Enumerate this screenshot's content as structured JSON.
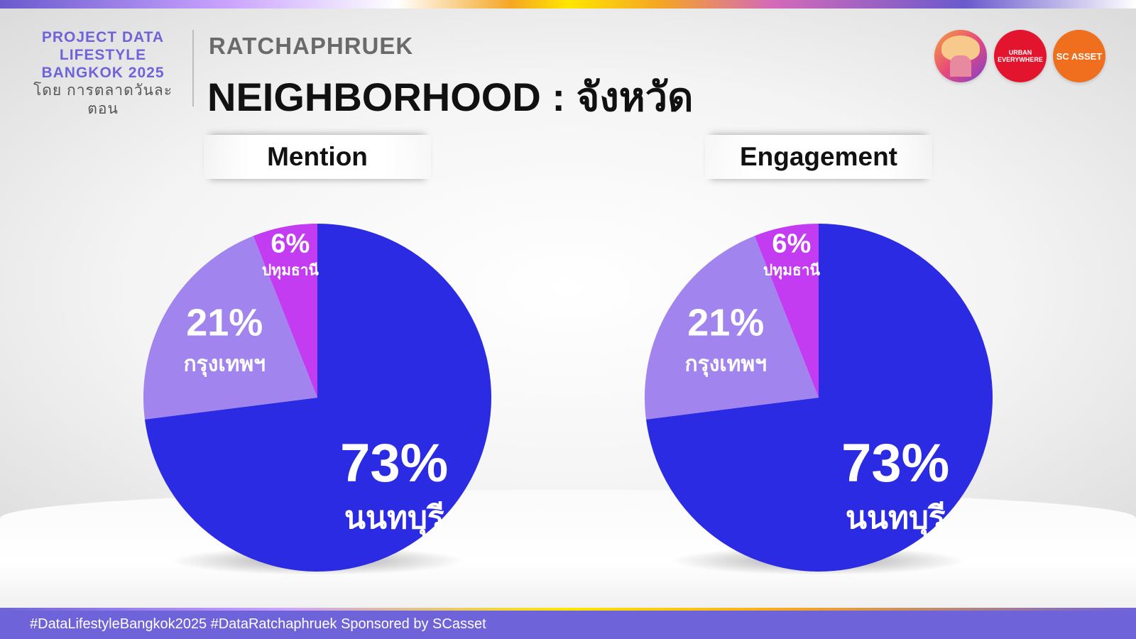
{
  "brand": {
    "lines": [
      "PROJECT DATA",
      "LIFESTYLE",
      "BANGKOK 2025"
    ],
    "subtitle": "โดย การตลาดวันละตอน"
  },
  "header": {
    "eyebrow": "RATCHAPHRUEK",
    "title": "NEIGHBORHOOD : จังหวัด"
  },
  "logos": {
    "urban": "URBAN EVERYWHERE",
    "scasset": "SC ASSET"
  },
  "colors": {
    "nonthaburi": "#2b2be4",
    "bangkok": "#a184ee",
    "pathumthani": "#c43cf2",
    "accent": "#6f63d9"
  },
  "chart_data": [
    {
      "type": "pie",
      "title": "Mention",
      "slices": [
        {
          "label": "นนทบุรี",
          "pct_label": "73%",
          "value": 73
        },
        {
          "label": "กรุงเทพฯ",
          "pct_label": "21%",
          "value": 21
        },
        {
          "label": "ปทุมธานี",
          "pct_label": "6%",
          "value": 6
        }
      ]
    },
    {
      "type": "pie",
      "title": "Engagement",
      "slices": [
        {
          "label": "นนทบุรี",
          "pct_label": "73%",
          "value": 73
        },
        {
          "label": "กรุงเทพฯ",
          "pct_label": "21%",
          "value": 21
        },
        {
          "label": "ปทุมธานี",
          "pct_label": "6%",
          "value": 6
        }
      ]
    }
  ],
  "footer": {
    "text": "#DataLifestyleBangkok2025 #DataRatchaphruek Sponsored by SCasset"
  }
}
